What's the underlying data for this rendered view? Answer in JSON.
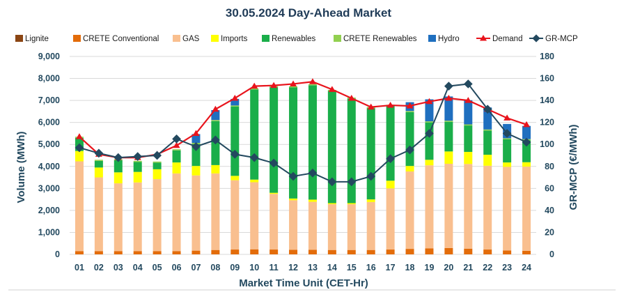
{
  "chart_data": {
    "type": "bar",
    "title": "30.05.2024  Day-Ahead Market",
    "xlabel": "Market Time Unit (CET-Hr)",
    "ylabel": "Volume (MWh)",
    "y2label": "GR-MCP (€/MWh)",
    "ylim": [
      0,
      9000
    ],
    "y2lim": [
      0,
      180
    ],
    "yticks": [
      "0",
      "1,000",
      "2,000",
      "3,000",
      "4,000",
      "5,000",
      "6,000",
      "7,000",
      "8,000",
      "9,000"
    ],
    "y2ticks": [
      "0",
      "20",
      "40",
      "60",
      "80",
      "100",
      "120",
      "140",
      "160",
      "180"
    ],
    "grid": true,
    "legend_position": "top",
    "categories": [
      "01",
      "02",
      "03",
      "04",
      "05",
      "06",
      "07",
      "08",
      "09",
      "10",
      "11",
      "12",
      "13",
      "14",
      "15",
      "16",
      "17",
      "18",
      "19",
      "20",
      "21",
      "22",
      "23",
      "24"
    ],
    "series": [
      {
        "name": "Lignite",
        "kind": "bar",
        "color": "#8b4513",
        "values": [
          0,
          0,
          0,
          0,
          0,
          0,
          0,
          0,
          0,
          0,
          0,
          0,
          0,
          0,
          0,
          0,
          0,
          0,
          0,
          0,
          0,
          0,
          0,
          0
        ]
      },
      {
        "name": "CRETE Conventional",
        "kind": "bar",
        "color": "#e36c0a",
        "values": [
          150,
          150,
          150,
          150,
          150,
          150,
          170,
          200,
          220,
          230,
          220,
          210,
          210,
          200,
          200,
          200,
          220,
          250,
          270,
          290,
          260,
          220,
          180,
          160
        ]
      },
      {
        "name": "GAS",
        "kind": "bar",
        "color": "#f9bf8f",
        "values": [
          4080,
          3350,
          3080,
          3120,
          3270,
          3530,
          3420,
          3480,
          3150,
          3050,
          2530,
          2250,
          2180,
          2080,
          2080,
          2180,
          2780,
          3520,
          3780,
          3830,
          3850,
          3810,
          3800,
          3830
        ]
      },
      {
        "name": "Imports",
        "kind": "bar",
        "color": "#ffff00",
        "values": [
          470,
          450,
          500,
          480,
          450,
          500,
          430,
          380,
          200,
          120,
          50,
          80,
          100,
          50,
          50,
          120,
          350,
          250,
          250,
          560,
          550,
          500,
          200,
          200
        ]
      },
      {
        "name": "Renewables",
        "kind": "bar",
        "color": "#1aae4a",
        "values": [
          600,
          300,
          550,
          450,
          300,
          550,
          1000,
          2000,
          3150,
          4100,
          4800,
          5050,
          5200,
          5100,
          4750,
          4150,
          3400,
          2450,
          1700,
          1350,
          1200,
          1100,
          1050,
          1000
        ]
      },
      {
        "name": "CRETE Renewables",
        "kind": "bar",
        "color": "#92d050",
        "values": [
          50,
          50,
          50,
          50,
          50,
          50,
          50,
          50,
          50,
          50,
          50,
          50,
          50,
          50,
          50,
          50,
          50,
          50,
          50,
          50,
          50,
          50,
          50,
          50
        ]
      },
      {
        "name": "Hydro",
        "kind": "bar",
        "color": "#1f6fbf",
        "values": [
          0,
          0,
          0,
          0,
          0,
          0,
          400,
          450,
          300,
          0,
          0,
          0,
          0,
          0,
          0,
          0,
          0,
          400,
          1000,
          1100,
          1100,
          1000,
          650,
          600
        ]
      },
      {
        "name": "Demand",
        "kind": "line",
        "axis": "left",
        "color": "#e8141c",
        "values": [
          5350,
          4550,
          4400,
          4400,
          4550,
          4950,
          5500,
          6600,
          7100,
          7650,
          7680,
          7750,
          7850,
          7500,
          7100,
          6700,
          6780,
          6750,
          6950,
          7100,
          7000,
          6600,
          6200,
          5900
        ]
      },
      {
        "name": "GR-MCP",
        "kind": "line",
        "axis": "right",
        "color": "#23495f",
        "values": [
          97,
          92,
          88,
          89,
          90,
          105,
          98,
          104,
          91,
          88,
          83,
          71,
          74,
          66,
          66,
          71,
          87,
          95,
          110,
          153,
          155,
          132,
          110,
          102
        ]
      }
    ]
  }
}
